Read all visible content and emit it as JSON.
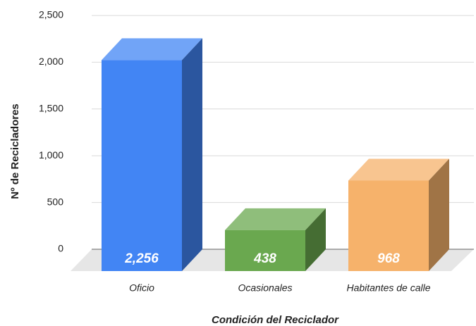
{
  "chart_data": {
    "type": "bar3d",
    "categories": [
      "Oficio",
      "Ocasionales",
      "Habitantes de calle"
    ],
    "values": [
      2256,
      438,
      968
    ],
    "value_labels": [
      "2,256",
      "438",
      "968"
    ],
    "colors": [
      "#4285f4",
      "#6aa84f",
      "#f6b26b"
    ],
    "xlabel": "Condición del Reciclador",
    "ylabel": "Nº de Recicladores",
    "ylim": [
      0,
      2500
    ],
    "yticks": [
      0,
      {
        "value": 500,
        "label": "500"
      },
      {
        "value": 1000,
        "label": "1,000"
      },
      {
        "value": 1500,
        "label": "1,500"
      },
      {
        "value": 2000,
        "label": "2,000"
      },
      {
        "value": 2500,
        "label": "2,500"
      }
    ],
    "grid": true
  }
}
